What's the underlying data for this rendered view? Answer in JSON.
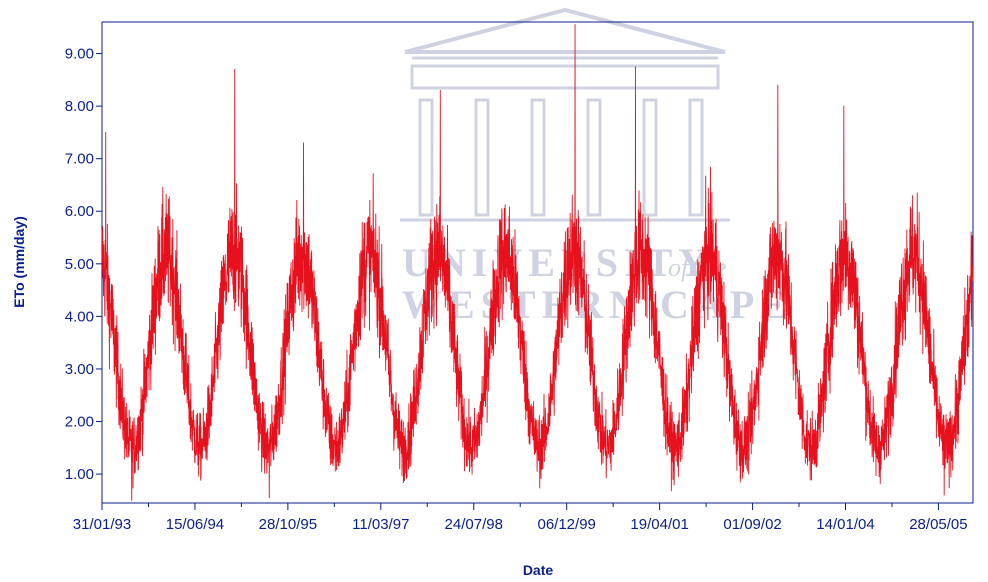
{
  "watermark": {
    "line1": "UNIVERSITY",
    "line1_suffix": "of the",
    "line2": "WESTERN CAPE",
    "color": "#a9afc9"
  },
  "colors": {
    "series": "#e8101c",
    "axis": "#0a1f8c",
    "text": "#0a1f8c"
  },
  "chart_data": {
    "type": "line",
    "title": "",
    "xlabel": "Date",
    "ylabel": "ETo (mm/day)",
    "x_range": [
      "1993-01-31",
      "2005-11-30"
    ],
    "ylim": [
      0.45,
      9.6
    ],
    "grid": false,
    "legend": "none",
    "x_ticks": [
      "31/01/93",
      "15/06/94",
      "28/10/95",
      "11/03/97",
      "24/07/98",
      "06/12/99",
      "19/04/01",
      "01/09/02",
      "14/01/04",
      "28/05/05"
    ],
    "y_ticks": [
      "1.00",
      "2.00",
      "3.00",
      "4.00",
      "5.00",
      "6.00",
      "7.00",
      "8.00",
      "9.00"
    ],
    "y_tick_values": [
      1,
      2,
      3,
      4,
      5,
      6,
      7,
      8,
      9
    ],
    "series": [
      {
        "values_description_omitted": true,
        "annual_cycle": {
          "peak_month": "January",
          "summer_mean": 5.2,
          "winter_mean": 1.5,
          "daily_noise": 1.1
        },
        "notable_points": [
          {
            "date": "1993-02-20",
            "value": 7.5
          },
          {
            "date": "1995-01-15",
            "value": 8.7
          },
          {
            "date": "1996-01-20",
            "value": 7.3
          },
          {
            "date": "1998-01-25",
            "value": 8.3
          },
          {
            "date": "2000-01-20",
            "value": 9.55
          },
          {
            "date": "2000-12-10",
            "value": 8.75
          },
          {
            "date": "2003-01-15",
            "value": 8.4
          },
          {
            "date": "2004-01-05",
            "value": 8.0
          },
          {
            "date": "1993-07-10",
            "value": 0.5
          },
          {
            "date": "1995-07-20",
            "value": 0.55
          },
          {
            "date": "2005-06-28",
            "value": 0.6
          }
        ]
      }
    ]
  }
}
